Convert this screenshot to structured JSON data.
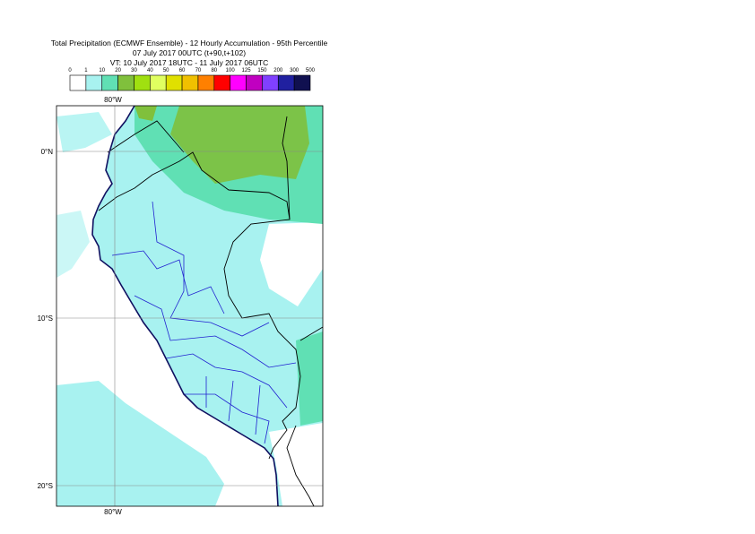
{
  "header": {
    "title": [
      "Total Precipitation (ECMWF Ensemble) - 12 Hourly Accumulation - 95th Percentile",
      "07 July 2017 00UTC (t+90,t+102)",
      "VT: 10 July 2017 18UTC - 11 July 2017 06UTC"
    ]
  },
  "legend": {
    "labels": [
      0,
      1,
      10,
      20,
      30,
      40,
      50,
      60,
      70,
      80,
      100,
      125,
      150,
      200,
      300,
      500
    ],
    "colors": [
      "#ffffff",
      "#a8f2f0",
      "#60e0b4",
      "#80c03c",
      "#a0e010",
      "#e0ff60",
      "#e0e000",
      "#f0c000",
      "#ff8000",
      "#ff0000",
      "#ff00ff",
      "#c000c0",
      "#8040ff",
      "#2020a0",
      "#101050"
    ]
  },
  "map": {
    "lon_labels": [
      "80°W"
    ],
    "lat_labels": [
      "0°N",
      "10°S",
      "20°S"
    ]
  }
}
